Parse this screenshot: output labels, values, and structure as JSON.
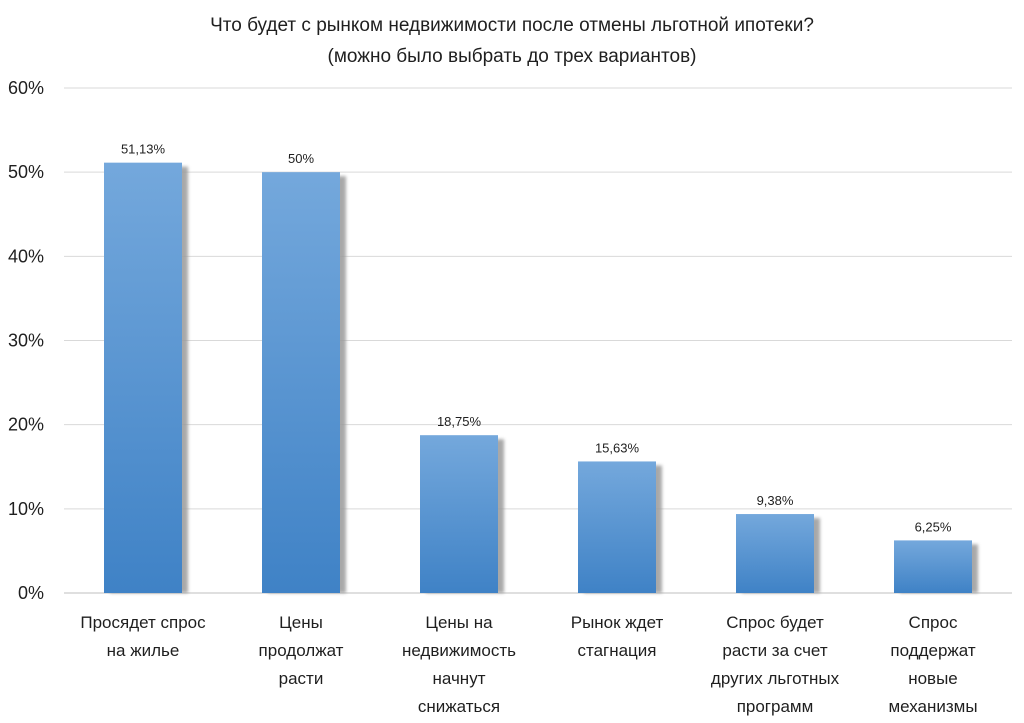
{
  "chart_data": {
    "type": "bar",
    "title_lines": [
      "Что будет с рынком недвижимости после отмены льготной ипотеки?",
      "(можно было выбрать до трех вариантов)"
    ],
    "categories": [
      [
        "Просядет спрос",
        "на жилье"
      ],
      [
        "Цены",
        "продолжат",
        "расти"
      ],
      [
        "Цены на",
        "недвижимость",
        "начнут",
        "снижаться"
      ],
      [
        "Рынок ждет",
        "стагнация"
      ],
      [
        "Спрос будет",
        "расти за счет",
        "других льготных",
        "программ"
      ],
      [
        "Спрос",
        "поддержат",
        "новые",
        "механизмы"
      ]
    ],
    "values": [
      51.13,
      50,
      18.75,
      15.63,
      9.38,
      6.25
    ],
    "data_labels": [
      "51,13%",
      "50%",
      "18,75%",
      "15,63%",
      "9,38%",
      "6,25%"
    ],
    "y_ticks": [
      0,
      10,
      20,
      30,
      40,
      50,
      60
    ],
    "y_tick_labels": [
      "0%",
      "10%",
      "20%",
      "30%",
      "40%",
      "50%",
      "60%"
    ],
    "ylim": [
      0,
      60
    ],
    "grid": true,
    "legend": "none",
    "colors": {
      "bar_top": "#74a8dc",
      "bar_bottom": "#3f82c6",
      "shadow": "#9a9a9a",
      "grid": "#d9d9d9",
      "axis": "#bfbfbf"
    }
  }
}
